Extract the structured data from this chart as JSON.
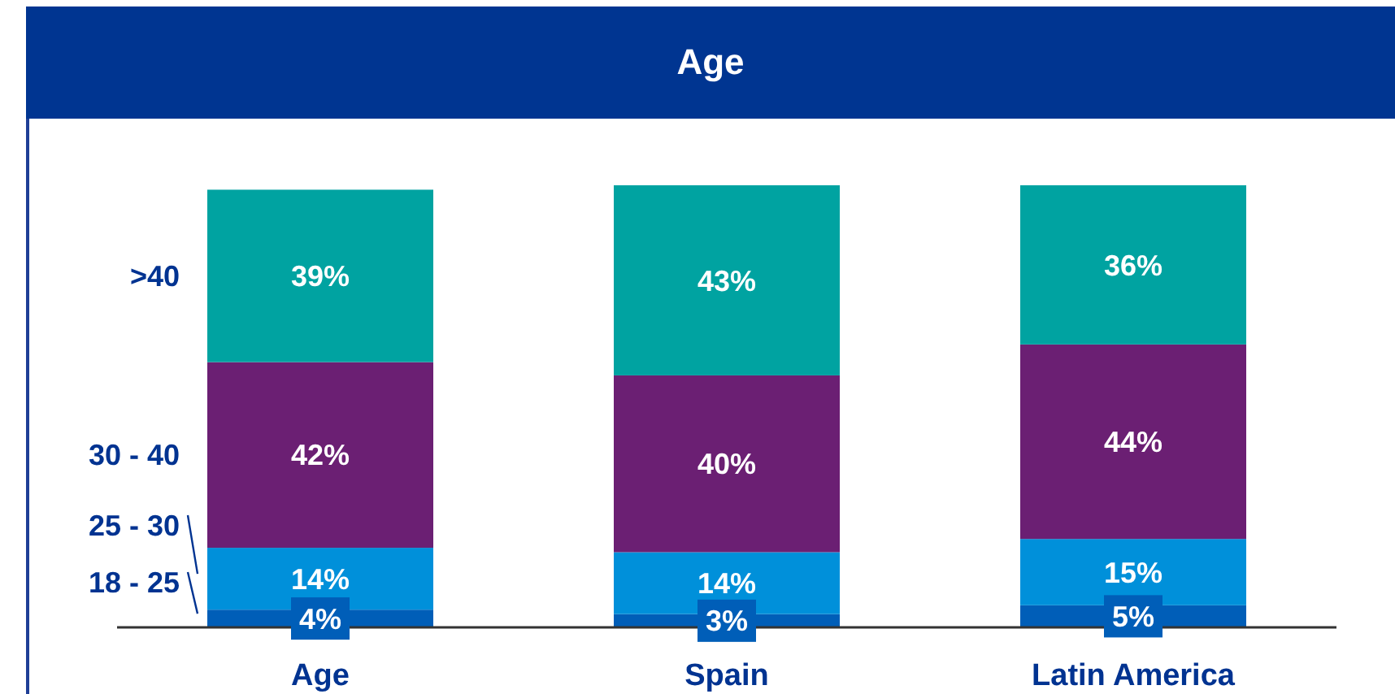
{
  "chart_data": {
    "type": "bar",
    "title": "Age",
    "categories": [
      "Age",
      "Spain",
      "Latin America"
    ],
    "stacked": true,
    "series": [
      {
        "name": "18 - 25",
        "color": "#005eb8",
        "values": [
          4,
          3,
          5
        ],
        "value_labels": [
          "4%",
          "3%",
          "5%"
        ]
      },
      {
        "name": "25 - 30",
        "color": "#0090da",
        "values": [
          14,
          14,
          15
        ],
        "value_labels": [
          "14%",
          "14%",
          "15%"
        ]
      },
      {
        "name": "30 - 40",
        "color": "#6b1f73",
        "values": [
          42,
          40,
          44
        ],
        "value_labels": [
          "42%",
          "40%",
          "44%"
        ]
      },
      {
        "name": ">40",
        "color": "#00a3a1",
        "values": [
          39,
          43,
          36
        ],
        "value_labels": [
          "39%",
          "43%",
          "36%"
        ]
      }
    ]
  }
}
